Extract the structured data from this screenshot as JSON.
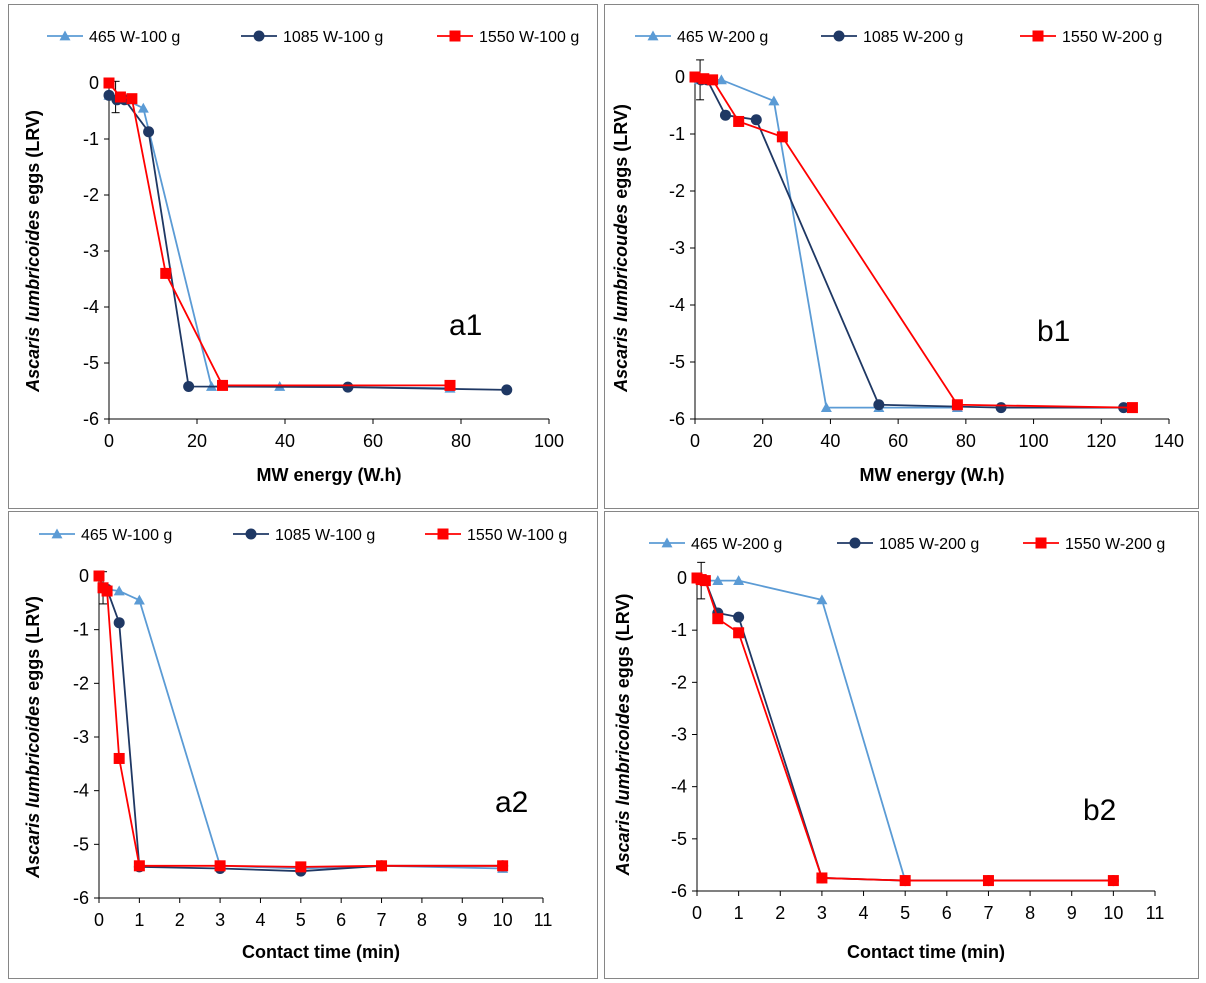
{
  "colors": {
    "s465": "#5b9bd5",
    "s1085": "#1f3864",
    "s1550": "#ff0000",
    "axis": "#000000",
    "frame": "#868686"
  },
  "marker_shapes": {
    "s465": "triangle",
    "s1085": "circle",
    "s1550": "square"
  },
  "chart_data": [
    {
      "type": "line",
      "label": "a1",
      "xlabel": "MW energy (W.h)",
      "ylabel_italic": "Ascaris lumbricoides",
      "ylabel_rest": " eggs (LRV)",
      "xlim": [
        0,
        100
      ],
      "ylim": [
        -6,
        0
      ],
      "xticks": [
        0,
        20,
        40,
        60,
        80,
        100
      ],
      "yticks": [
        0,
        -1,
        -2,
        -3,
        -4,
        -5,
        -6
      ],
      "series": [
        {
          "name": "465 W-100 g",
          "x": [
            0,
            2.6,
            3.9,
            7.8,
            23.3,
            38.8,
            77.5
          ],
          "y": [
            -0.22,
            -0.28,
            -0.3,
            -0.45,
            -5.42,
            -5.42,
            -5.45
          ]
        },
        {
          "name": "1085 W-100 g",
          "x": [
            0,
            1.8,
            3.6,
            9.0,
            18.1,
            54.3,
            90.4
          ],
          "y": [
            -0.22,
            -0.3,
            -0.3,
            -0.87,
            -5.42,
            -5.43,
            -5.48
          ]
        },
        {
          "name": "1550 W-100 g",
          "x": [
            0,
            2.6,
            5.2,
            12.9,
            25.8,
            77.5
          ],
          "y": [
            0,
            -0.25,
            -0.28,
            -3.4,
            -5.4,
            -5.4
          ]
        }
      ],
      "error_bars": [
        {
          "x": 1.5,
          "y": -0.25,
          "err": 0.28
        }
      ]
    },
    {
      "type": "line",
      "label": "b1",
      "xlabel": "MW energy (W.h)",
      "ylabel_italic": "Ascaris lumbricoudes",
      "ylabel_rest": " eggs (LRV)",
      "xlim": [
        0,
        140
      ],
      "ylim": [
        -6,
        0
      ],
      "xticks": [
        0,
        20,
        40,
        60,
        80,
        100,
        120,
        140
      ],
      "yticks": [
        0,
        -1,
        -2,
        -3,
        -4,
        -5,
        -6
      ],
      "series": [
        {
          "name": "465 W-200 g",
          "x": [
            0,
            1.3,
            3.9,
            7.8,
            23.3,
            38.8,
            54.3,
            77.5
          ],
          "y": [
            0,
            -0.05,
            -0.05,
            -0.05,
            -0.42,
            -5.8,
            -5.8,
            -5.8
          ]
        },
        {
          "name": "1085 W-200 g",
          "x": [
            0,
            1.8,
            3.6,
            9.0,
            18.1,
            54.3,
            90.4,
            126.6
          ],
          "y": [
            0,
            -0.05,
            -0.05,
            -0.67,
            -0.75,
            -5.75,
            -5.8,
            -5.8
          ]
        },
        {
          "name": "1550 W-200 g",
          "x": [
            0,
            2.6,
            5.2,
            12.9,
            25.8,
            77.5,
            129.2
          ],
          "y": [
            0,
            -0.03,
            -0.05,
            -0.78,
            -1.05,
            -5.75,
            -5.8
          ]
        }
      ],
      "error_bars": [
        {
          "x": 1.5,
          "y": -0.05,
          "err": 0.35
        }
      ]
    },
    {
      "type": "line",
      "label": "a2",
      "xlabel": "Contact time (min)",
      "ylabel_italic": "Ascaris lumbricoides",
      "ylabel_rest": " eggs (LRV)",
      "xlim": [
        0,
        11
      ],
      "ylim": [
        -6,
        0
      ],
      "xticks": [
        0,
        1,
        2,
        3,
        4,
        5,
        6,
        7,
        8,
        9,
        10,
        11
      ],
      "yticks": [
        0,
        -1,
        -2,
        -3,
        -4,
        -5,
        -6
      ],
      "series": [
        {
          "name": "465 W-100 g",
          "x": [
            0,
            0.1,
            0.2,
            0.5,
            1,
            3,
            5,
            7,
            10
          ],
          "y": [
            0,
            -0.22,
            -0.25,
            -0.28,
            -0.45,
            -5.4,
            -5.45,
            -5.4,
            -5.45
          ]
        },
        {
          "name": "1085 W-100 g",
          "x": [
            0,
            0.1,
            0.2,
            0.5,
            1,
            3,
            5,
            7,
            10
          ],
          "y": [
            0,
            -0.22,
            -0.25,
            -0.87,
            -5.42,
            -5.45,
            -5.5,
            -5.4,
            -5.4
          ]
        },
        {
          "name": "1550 W-100 g",
          "x": [
            0,
            0.1,
            0.2,
            0.5,
            1,
            3,
            5,
            7,
            10
          ],
          "y": [
            0,
            -0.22,
            -0.28,
            -3.4,
            -5.4,
            -5.4,
            -5.42,
            -5.4,
            -5.4
          ]
        }
      ],
      "error_bars": [
        {
          "x": 0.1,
          "y": -0.22,
          "err": 0.3
        }
      ]
    },
    {
      "type": "line",
      "label": "b2",
      "xlabel": "Contact time (min)",
      "ylabel_italic": "Ascaris lumbricoides",
      "ylabel_rest": " eggs (LRV)",
      "xlim": [
        0,
        11
      ],
      "ylim": [
        -6,
        0
      ],
      "xticks": [
        0,
        1,
        2,
        3,
        4,
        5,
        6,
        7,
        8,
        9,
        10,
        11
      ],
      "yticks": [
        0,
        -1,
        -2,
        -3,
        -4,
        -5,
        -6
      ],
      "series": [
        {
          "name": "465 W-200 g",
          "x": [
            0,
            0.1,
            0.2,
            0.5,
            1,
            3,
            5,
            7,
            10
          ],
          "y": [
            0,
            -0.03,
            -0.05,
            -0.05,
            -0.05,
            -0.42,
            -5.8,
            -5.8,
            -5.8
          ]
        },
        {
          "name": "1085 W-200 g",
          "x": [
            0,
            0.1,
            0.2,
            0.5,
            1,
            3,
            5,
            7,
            10
          ],
          "y": [
            0,
            -0.03,
            -0.05,
            -0.67,
            -0.75,
            -5.75,
            -5.8,
            -5.8,
            -5.8
          ]
        },
        {
          "name": "1550 W-200 g",
          "x": [
            0,
            0.1,
            0.2,
            0.5,
            1,
            3,
            5,
            7,
            10
          ],
          "y": [
            0,
            -0.03,
            -0.05,
            -0.78,
            -1.05,
            -5.75,
            -5.8,
            -5.8,
            -5.8
          ]
        }
      ],
      "error_bars": [
        {
          "x": 0.1,
          "y": -0.05,
          "err": 0.35
        }
      ]
    }
  ]
}
